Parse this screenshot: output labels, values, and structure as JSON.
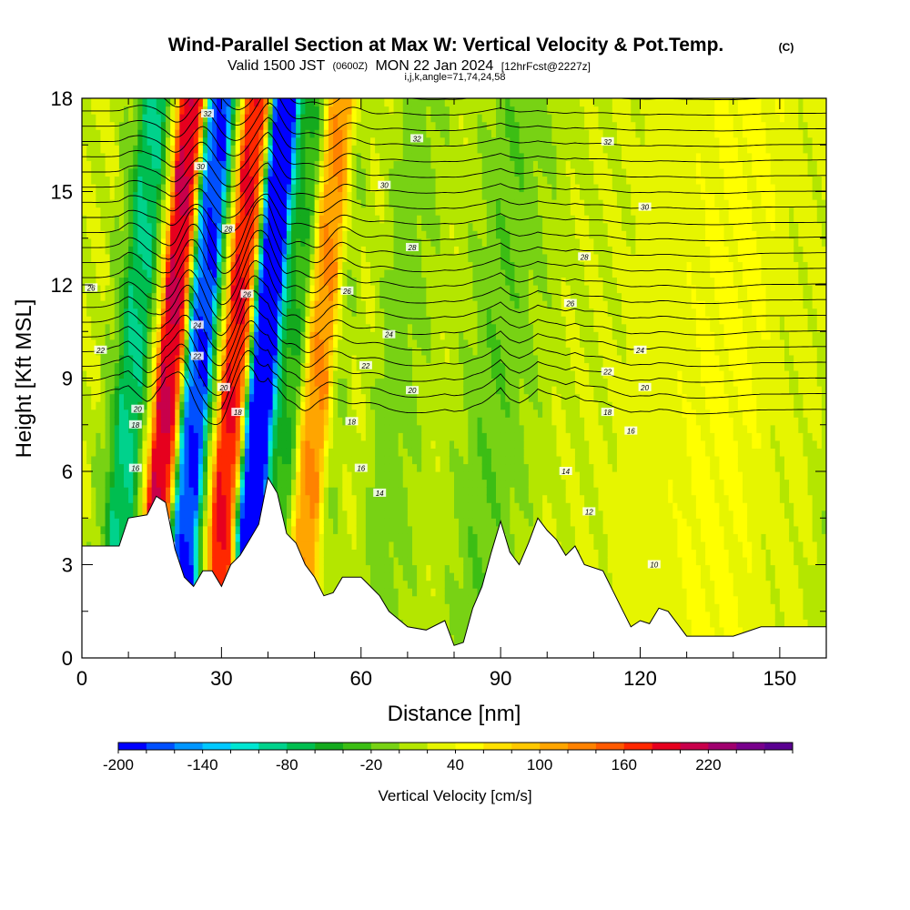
{
  "header": {
    "title": "Wind-Parallel Section at Max W: Vertical Velocity & Pot.Temp.",
    "copyright": "(C)",
    "valid_prefix": "Valid 1500 JST",
    "utc": "(0600Z)",
    "valid_date": "MON 22 Jan 2024",
    "forecast": "[12hrFcst@2227z]",
    "indices": "i,j,k,angle=71,74,24,58"
  },
  "chart_data": {
    "type": "heatmap",
    "xlabel": "Distance [nm]",
    "ylabel": "Height [Kft MSL]",
    "xlim": [
      0,
      160
    ],
    "ylim": [
      0,
      18
    ],
    "x_ticks": [
      "0",
      "30",
      "60",
      "90",
      "120",
      "150"
    ],
    "y_ticks": [
      "0",
      "3",
      "6",
      "9",
      "12",
      "15",
      "18"
    ],
    "colorbar": {
      "label": "Vertical Velocity [cm/s]",
      "tick_labels": [
        "-200",
        "-140",
        "-80",
        "-20",
        "40",
        "100",
        "160",
        "220"
      ],
      "colors": [
        "#0000ff",
        "#0050ff",
        "#0096ff",
        "#00c8ff",
        "#00e6d2",
        "#00d28c",
        "#00be50",
        "#14aa1e",
        "#3cbe14",
        "#78d214",
        "#b4e600",
        "#e6f500",
        "#ffff00",
        "#ffe100",
        "#ffc800",
        "#ffa500",
        "#ff8200",
        "#ff5a00",
        "#ff2800",
        "#e6001e",
        "#c8004b",
        "#a0006e",
        "#78008c",
        "#5a0091"
      ]
    },
    "terrain_kft": [
      [
        0,
        3.6
      ],
      [
        8,
        3.6
      ],
      [
        10,
        4.5
      ],
      [
        14,
        4.6
      ],
      [
        16,
        5.2
      ],
      [
        18,
        5.0
      ],
      [
        20,
        3.5
      ],
      [
        22,
        2.6
      ],
      [
        24,
        2.3
      ],
      [
        26,
        2.8
      ],
      [
        28,
        2.8
      ],
      [
        30,
        2.3
      ],
      [
        32,
        3.0
      ],
      [
        34,
        3.3
      ],
      [
        36,
        3.8
      ],
      [
        38,
        4.3
      ],
      [
        40,
        5.8
      ],
      [
        42,
        5.3
      ],
      [
        44,
        4.0
      ],
      [
        46,
        3.7
      ],
      [
        48,
        3.0
      ],
      [
        50,
        2.6
      ],
      [
        52,
        2.0
      ],
      [
        54,
        2.1
      ],
      [
        56,
        2.6
      ],
      [
        60,
        2.6
      ],
      [
        62,
        2.3
      ],
      [
        64,
        2.0
      ],
      [
        66,
        1.5
      ],
      [
        70,
        1.0
      ],
      [
        74,
        0.9
      ],
      [
        78,
        1.2
      ],
      [
        80,
        0.4
      ],
      [
        82,
        0.5
      ],
      [
        84,
        1.6
      ],
      [
        86,
        2.3
      ],
      [
        88,
        3.4
      ],
      [
        90,
        4.4
      ],
      [
        92,
        3.4
      ],
      [
        94,
        3.0
      ],
      [
        96,
        3.7
      ],
      [
        98,
        4.5
      ],
      [
        100,
        4.1
      ],
      [
        102,
        3.8
      ],
      [
        104,
        3.3
      ],
      [
        106,
        3.6
      ],
      [
        108,
        3.0
      ],
      [
        112,
        2.8
      ],
      [
        114,
        2.2
      ],
      [
        116,
        1.6
      ],
      [
        118,
        1.0
      ],
      [
        120,
        1.2
      ],
      [
        122,
        1.1
      ],
      [
        124,
        1.6
      ],
      [
        126,
        1.5
      ],
      [
        128,
        1.1
      ],
      [
        130,
        0.7
      ],
      [
        140,
        0.7
      ],
      [
        146,
        1.0
      ],
      [
        160,
        1.0
      ]
    ],
    "wave_x_nm": [
      8,
      16,
      22,
      30,
      36,
      42,
      48,
      58,
      64,
      78,
      86,
      92,
      104,
      120,
      136,
      150
    ],
    "wave_w_cms": [
      -80,
      200,
      -180,
      180,
      -220,
      -40,
      120,
      30,
      -10,
      20,
      -40,
      10,
      20,
      30,
      45,
      25
    ],
    "theta_base": 8,
    "theta_step": 0.5,
    "theta_count": 52,
    "contour_labels": [
      {
        "text": "32",
        "x": 27,
        "y": 17.5
      },
      {
        "text": "30",
        "x": 25.5,
        "y": 15.8
      },
      {
        "text": "28",
        "x": 31.5,
        "y": 13.8
      },
      {
        "text": "26",
        "x": 35.5,
        "y": 11.7
      },
      {
        "text": "24",
        "x": 24.8,
        "y": 10.7
      },
      {
        "text": "22",
        "x": 24.8,
        "y": 9.7
      },
      {
        "text": "20",
        "x": 30.5,
        "y": 8.7
      },
      {
        "text": "18",
        "x": 33.5,
        "y": 7.9
      },
      {
        "text": "26",
        "x": 2,
        "y": 11.9
      },
      {
        "text": "22",
        "x": 4,
        "y": 9.9
      },
      {
        "text": "20",
        "x": 12,
        "y": 8.0
      },
      {
        "text": "18",
        "x": 11.5,
        "y": 7.5
      },
      {
        "text": "16",
        "x": 11.5,
        "y": 6.1
      },
      {
        "text": "32",
        "x": 72,
        "y": 16.7
      },
      {
        "text": "32",
        "x": 113,
        "y": 16.6
      },
      {
        "text": "30",
        "x": 65,
        "y": 15.2
      },
      {
        "text": "30",
        "x": 121,
        "y": 14.5
      },
      {
        "text": "28",
        "x": 71,
        "y": 13.2
      },
      {
        "text": "28",
        "x": 108,
        "y": 12.9
      },
      {
        "text": "26",
        "x": 57,
        "y": 11.8
      },
      {
        "text": "26",
        "x": 105,
        "y": 11.4
      },
      {
        "text": "24",
        "x": 66,
        "y": 10.4
      },
      {
        "text": "24",
        "x": 120,
        "y": 9.9
      },
      {
        "text": "22",
        "x": 61,
        "y": 9.4
      },
      {
        "text": "22",
        "x": 113,
        "y": 9.2
      },
      {
        "text": "20",
        "x": 71,
        "y": 8.6
      },
      {
        "text": "20",
        "x": 121,
        "y": 8.7
      },
      {
        "text": "18",
        "x": 58,
        "y": 7.6
      },
      {
        "text": "18",
        "x": 113,
        "y": 7.9
      },
      {
        "text": "16",
        "x": 60,
        "y": 6.1
      },
      {
        "text": "16",
        "x": 118,
        "y": 7.3
      },
      {
        "text": "14",
        "x": 64,
        "y": 5.3
      },
      {
        "text": "14",
        "x": 104,
        "y": 6.0
      },
      {
        "text": "12",
        "x": 109,
        "y": 4.7
      },
      {
        "text": "10",
        "x": 123,
        "y": 3.0
      }
    ]
  }
}
